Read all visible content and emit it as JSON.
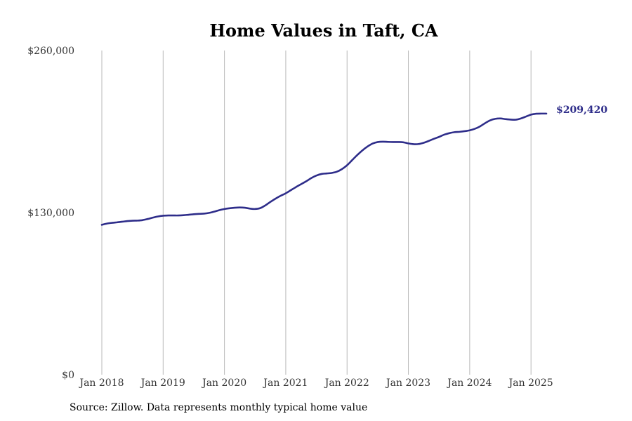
{
  "source_note": "Source: Zillow. Data represents monthly typical home value",
  "colors": {
    "line": "#2e2d8a",
    "grid": "#b8b8b8"
  },
  "chart_data": {
    "type": "line",
    "title": "Home Values in Taft, CA",
    "xlabel": "",
    "ylabel": "",
    "ylim": [
      0,
      260000
    ],
    "y_ticks": [
      {
        "value": 0,
        "label": "$0"
      },
      {
        "value": 130000,
        "label": "$130,000"
      },
      {
        "value": 260000,
        "label": "$260,000"
      }
    ],
    "x_ticks": [
      {
        "date": "2018-01",
        "label": "Jan 2018"
      },
      {
        "date": "2019-01",
        "label": "Jan 2019"
      },
      {
        "date": "2020-01",
        "label": "Jan 2020"
      },
      {
        "date": "2021-01",
        "label": "Jan 2021"
      },
      {
        "date": "2022-01",
        "label": "Jan 2022"
      },
      {
        "date": "2023-01",
        "label": "Jan 2023"
      },
      {
        "date": "2024-01",
        "label": "Jan 2024"
      },
      {
        "date": "2025-01",
        "label": "Jan 2025"
      }
    ],
    "xlim": [
      "2018-01",
      "2025-04"
    ],
    "grid": "vertical",
    "end_label": "$209,420",
    "series": [
      {
        "x": [
          "2018-01",
          "2018-02",
          "2018-03",
          "2018-04",
          "2018-05",
          "2018-06",
          "2018-07",
          "2018-08",
          "2018-09",
          "2018-10",
          "2018-11",
          "2018-12",
          "2019-01",
          "2019-02",
          "2019-03",
          "2019-04",
          "2019-05",
          "2019-06",
          "2019-07",
          "2019-08",
          "2019-09",
          "2019-10",
          "2019-11",
          "2019-12",
          "2020-01",
          "2020-02",
          "2020-03",
          "2020-04",
          "2020-05",
          "2020-06",
          "2020-07",
          "2020-08",
          "2020-09",
          "2020-10",
          "2020-11",
          "2020-12",
          "2021-01",
          "2021-02",
          "2021-03",
          "2021-04",
          "2021-05",
          "2021-06",
          "2021-07",
          "2021-08",
          "2021-09",
          "2021-10",
          "2021-11",
          "2021-12",
          "2022-01",
          "2022-02",
          "2022-03",
          "2022-04",
          "2022-05",
          "2022-06",
          "2022-07",
          "2022-08",
          "2022-09",
          "2022-10",
          "2022-11",
          "2022-12",
          "2023-01",
          "2023-02",
          "2023-03",
          "2023-04",
          "2023-05",
          "2023-06",
          "2023-07",
          "2023-08",
          "2023-09",
          "2023-10",
          "2023-11",
          "2023-12",
          "2024-01",
          "2024-02",
          "2024-03",
          "2024-04",
          "2024-05",
          "2024-06",
          "2024-07",
          "2024-08",
          "2024-09",
          "2024-10",
          "2024-11",
          "2024-12",
          "2025-01",
          "2025-02",
          "2025-03",
          "2025-04"
        ],
        "values": [
          120200,
          121200,
          121800,
          122200,
          122700,
          123200,
          123500,
          123600,
          124000,
          124900,
          126000,
          126900,
          127500,
          127700,
          127700,
          127700,
          127900,
          128300,
          128700,
          129000,
          129200,
          129800,
          130800,
          132000,
          132900,
          133500,
          133900,
          134100,
          133900,
          133200,
          132900,
          133600,
          135800,
          138600,
          141200,
          143500,
          145500,
          148000,
          150500,
          152800,
          155100,
          157700,
          159700,
          161000,
          161400,
          161800,
          162800,
          164900,
          168000,
          172100,
          176200,
          179900,
          183000,
          185400,
          186600,
          186900,
          186700,
          186600,
          186600,
          186400,
          185500,
          184900,
          185000,
          186000,
          187500,
          189200,
          190700,
          192500,
          193700,
          194500,
          194800,
          195300,
          196000,
          197200,
          199100,
          201700,
          204000,
          205200,
          205500,
          205000,
          204600,
          204500,
          205500,
          207000,
          208600,
          209300,
          209420,
          209420
        ]
      }
    ]
  }
}
